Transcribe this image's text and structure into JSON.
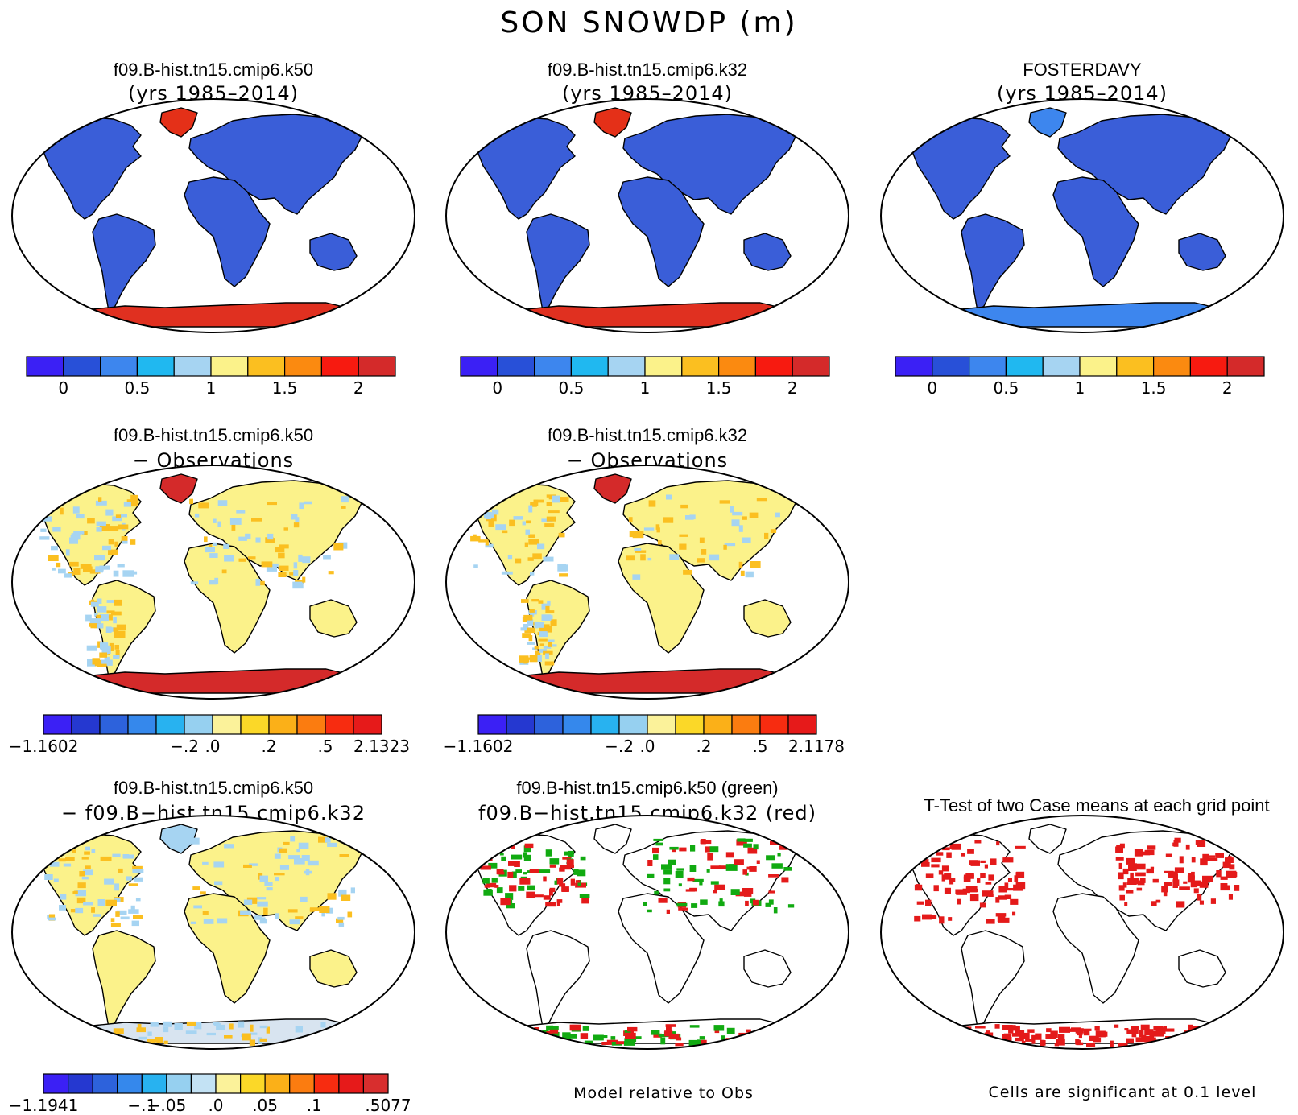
{
  "title": "SON SNOWDP (m)",
  "palette": [
    "#3b20f5",
    "#2850d8",
    "#3d86ee",
    "#20b8f0",
    "#a6d4f2",
    "#fbf28a",
    "#fbbf20",
    "#fb8a10",
    "#f71a10",
    "#d42a2a"
  ],
  "palette_diff": [
    "#3b20f5",
    "#2538d0",
    "#2d62dc",
    "#3588ec",
    "#28b2f0",
    "#96d0f0",
    "#c3e2f4",
    "#fbf29a",
    "#fbd828",
    "#fbb018",
    "#fb7c10",
    "#f72c10",
    "#e61a1a",
    "#d82e2e"
  ],
  "panels": [
    {
      "title": "f09.B-hist.tn15.cmip6.k50",
      "subtitle": "(yrs 1985–2014)",
      "land": "#3a5ed8",
      "greenland": "#e43018",
      "antarctica": "#e03020",
      "colorbar": {
        "kind": "main",
        "ticks": [
          "0",
          "0.5",
          "1",
          "1.5",
          "2"
        ]
      }
    },
    {
      "title": "f09.B-hist.tn15.cmip6.k32",
      "subtitle": "(yrs 1985–2014)",
      "land": "#3a5ed8",
      "greenland": "#e43018",
      "antarctica": "#e03020",
      "colorbar": {
        "kind": "main",
        "ticks": [
          "0",
          "0.5",
          "1",
          "1.5",
          "2"
        ]
      }
    },
    {
      "title": "FOSTERDAVY",
      "subtitle": "(yrs 1985–2014)",
      "land": "#3a5ed8",
      "greenland": "#3d86ee",
      "antarctica": "#3d86ee",
      "colorbar": {
        "kind": "main",
        "ticks": [
          "0",
          "0.5",
          "1",
          "1.5",
          "2"
        ]
      }
    },
    {
      "title": "f09.B-hist.tn15.cmip6.k50",
      "subtitle": "− Observations",
      "land": "#fbf28a",
      "greenland": "#d42a2a",
      "antarctica": "#d42a2a",
      "colorbar": {
        "kind": "diff",
        "ticks": [
          "−1.1602",
          "−.2",
          ".0",
          ".2",
          ".5",
          "2.1323"
        ]
      }
    },
    {
      "title": "f09.B-hist.tn15.cmip6.k32",
      "subtitle": "− Observations",
      "land": "#fbf28a",
      "greenland": "#d42a2a",
      "antarctica": "#d42a2a",
      "colorbar": {
        "kind": "diff",
        "ticks": [
          "−1.1602",
          "−.2",
          ".0",
          ".2",
          ".5",
          "2.1178"
        ]
      }
    },
    {
      "title": "f09.B-hist.tn15.cmip6.k50",
      "subtitle": "− f09.B−hist.tn15.cmip6.k32",
      "land": "#fbf28a",
      "greenland": "#a6d4f2",
      "antarctica": "#d8e4f0",
      "colorbar": {
        "kind": "diff3",
        "ticks": [
          "−1.1941",
          "−.1",
          "−.05",
          ".0",
          ".05",
          ".1",
          ".5077"
        ]
      }
    },
    {
      "title": "f09.B-hist.tn15.cmip6.k50 (green)",
      "subtitle": "f09.B−hist.tn15.cmip6.k32 (red)",
      "land": "#ffffff",
      "greenland": "#ffffff",
      "antarctica": "#ffffff",
      "note": "Model relative to Obs"
    },
    {
      "title": "T-Test of two Case means at each grid point",
      "subtitle": "",
      "land": "#ffffff",
      "greenland": "#ffffff",
      "antarctica": "#ffffff",
      "note": "Cells are significant at 0.1 level"
    }
  ]
}
